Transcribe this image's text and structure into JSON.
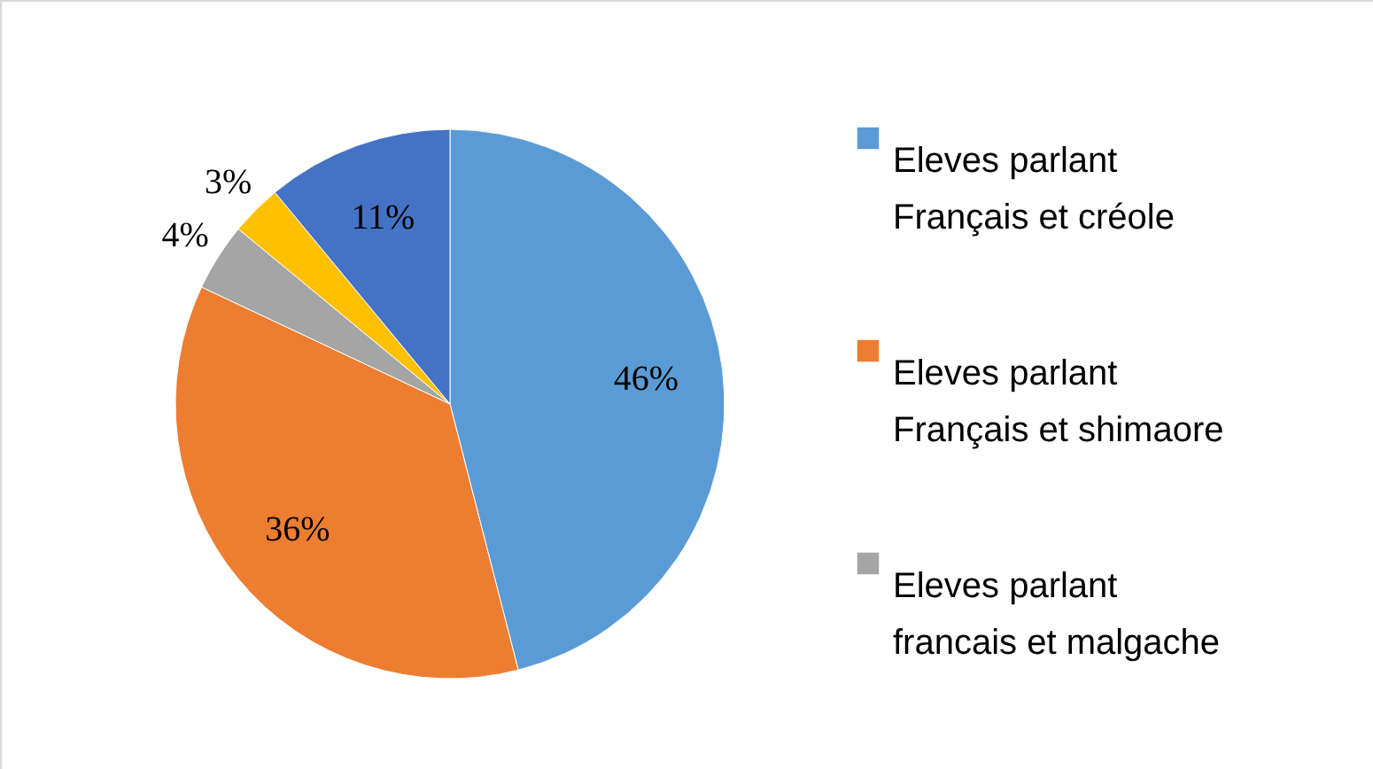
{
  "chart_data": {
    "type": "pie",
    "categories": [
      "Eleves parlant Français et créole",
      "Eleves parlant Français et shimaore",
      "Eleves parlant francais et malgache",
      null,
      null
    ],
    "values": [
      46,
      36,
      4,
      3,
      11
    ],
    "colors": [
      "#5b9bd5",
      "#ed7d31",
      "#a5a5a5",
      "#ffc000",
      "#4472c4"
    ],
    "value_labels": [
      "46%",
      "36%",
      "4%",
      "3%",
      "11%"
    ],
    "legend": "right"
  }
}
